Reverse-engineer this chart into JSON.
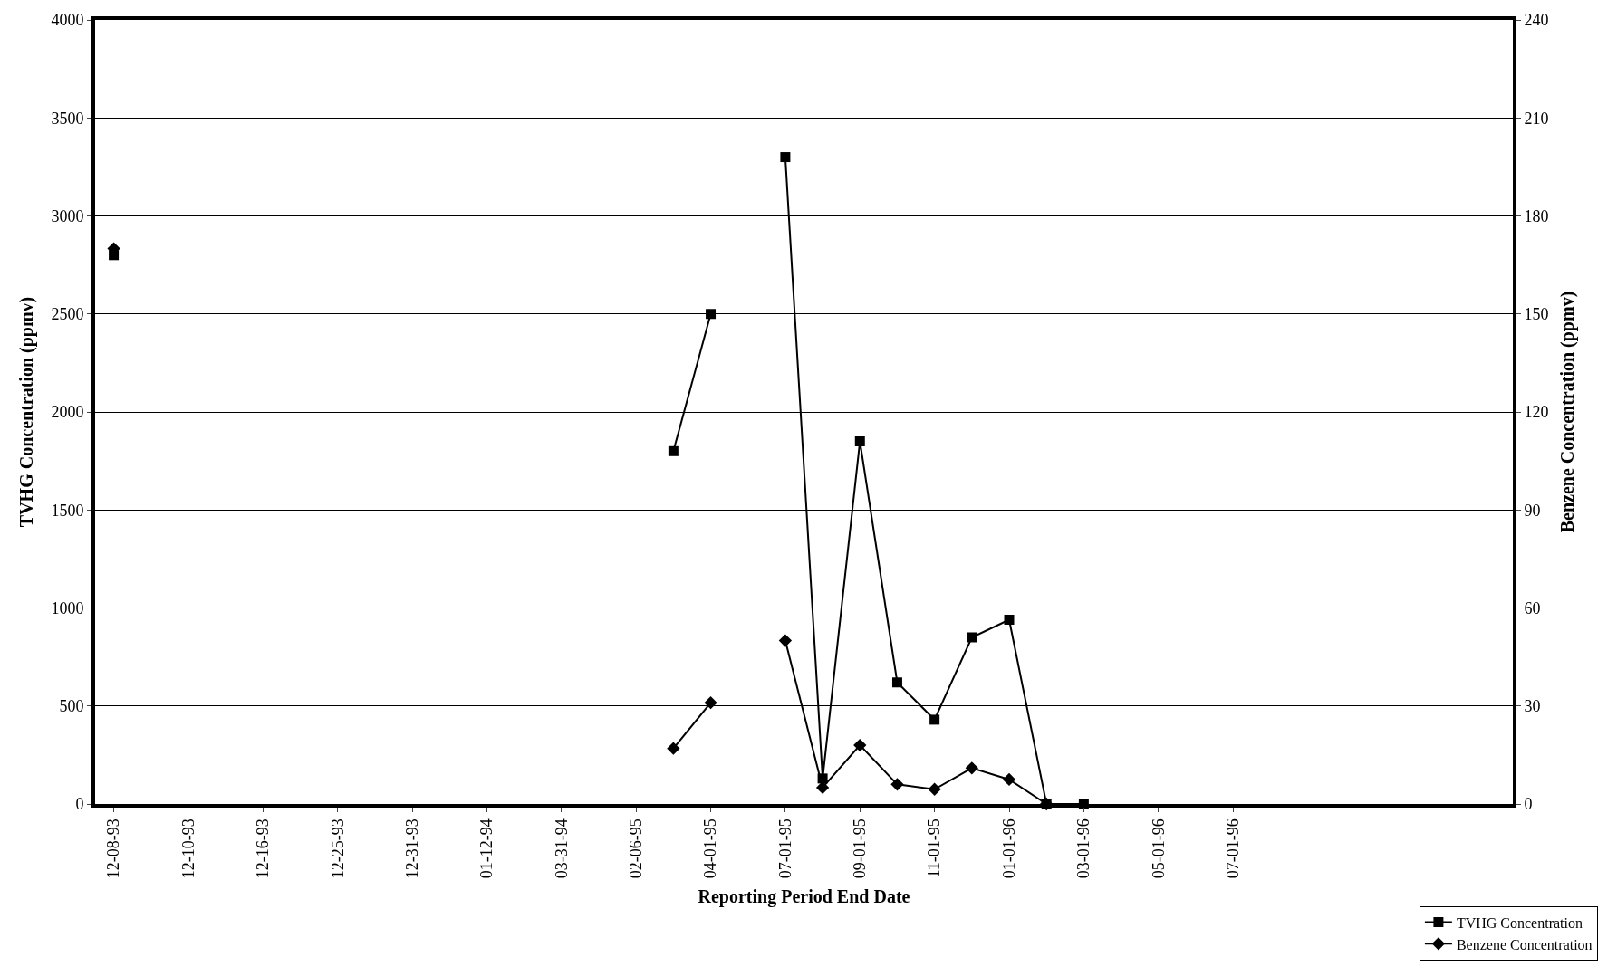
{
  "chart_data": {
    "type": "line",
    "xlabel": "Reporting Period End Date",
    "ylabel": "TVHG Concentration (ppmv)",
    "y2label": "Benzene Concentration (ppmv)",
    "categories": [
      "12-08-93",
      null,
      "12-10-93",
      null,
      "12-16-93",
      null,
      "12-25-93",
      null,
      "12-31-93",
      null,
      "01-12-94",
      null,
      "03-31-94",
      null,
      "02-06-95",
      null,
      "04-01-95",
      null,
      "07-01-95",
      null,
      "09-01-95",
      null,
      "11-01-95",
      null,
      "01-01-96",
      null,
      "03-01-96",
      null,
      "05-01-96",
      null,
      "07-01-96",
      null,
      null,
      null,
      null,
      null,
      null,
      null
    ],
    "series": [
      {
        "name": "TVHG Concentration",
        "color": "#000000",
        "marker": "square",
        "values": [
          2800,
          null,
          null,
          null,
          null,
          null,
          null,
          null,
          null,
          null,
          null,
          null,
          null,
          null,
          null,
          1800,
          2500,
          null,
          3300,
          130,
          1850,
          620,
          430,
          850,
          940,
          0,
          0,
          null,
          null,
          null,
          null,
          null,
          null,
          null,
          null,
          null,
          null,
          null
        ]
      },
      {
        "name": "Benzene Concentration",
        "color": "#000000",
        "marker": "diamond",
        "axis": "y2",
        "values": [
          170,
          null,
          null,
          null,
          null,
          null,
          null,
          null,
          null,
          null,
          null,
          null,
          null,
          null,
          null,
          17,
          31,
          null,
          50,
          5,
          18,
          6,
          4.5,
          11,
          7.5,
          0,
          null,
          null,
          null,
          null,
          null,
          null,
          null,
          null,
          null,
          null,
          null,
          null
        ]
      }
    ],
    "ylim": [
      0,
      4000
    ],
    "yticks": [
      0,
      500,
      1000,
      1500,
      2000,
      2500,
      3000,
      3500,
      4000
    ],
    "y2lim": [
      0,
      240
    ],
    "y2ticks": [
      0,
      30,
      60,
      90,
      120,
      150,
      180,
      210,
      240
    ],
    "grid": "y",
    "legend": "bottom right",
    "line_style": "solid"
  }
}
